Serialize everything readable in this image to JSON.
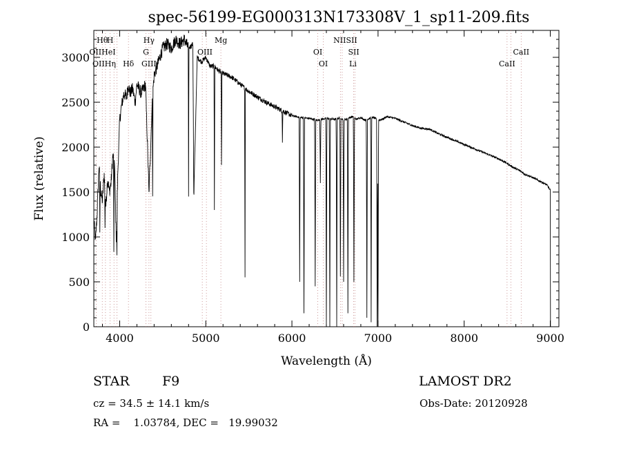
{
  "chart_data": {
    "type": "line",
    "title": "spec-56199-EG000313N173308V_1_sp11-209.fits",
    "xlabel": "Wavelength (Å)",
    "ylabel": "Flux (relative)",
    "xlim": [
      3700,
      9100
    ],
    "ylim": [
      0,
      3300
    ],
    "xticks": [
      4000,
      5000,
      6000,
      7000,
      8000,
      9000
    ],
    "yticks": [
      0,
      500,
      1000,
      1500,
      2000,
      2500,
      3000
    ],
    "grid": false,
    "series": [
      {
        "x": [
          3700,
          3720,
          3740,
          3760,
          3780,
          3800,
          3820,
          3840,
          3860,
          3880,
          3900,
          3920,
          3940,
          3960,
          3980,
          4000,
          4020,
          4050,
          4080,
          4100,
          4120,
          4150,
          4180,
          4200,
          4250,
          4300,
          4340,
          4380,
          4400,
          4450,
          4500,
          4550,
          4600,
          4650,
          4700,
          4750,
          4800,
          4850,
          4861,
          4900,
          4950,
          5000,
          5050,
          5100,
          5150,
          5200,
          5250,
          5300,
          5400,
          5500,
          5600,
          5700,
          5800,
          5900,
          6000,
          6100,
          6200,
          6300,
          6400,
          6500,
          6563,
          6600,
          6650,
          6700,
          6750,
          6800,
          6850,
          6900,
          6950,
          7000,
          7050,
          7100,
          7200,
          7300,
          7400,
          7500,
          7600,
          7700,
          7800,
          7900,
          8000,
          8100,
          8200,
          8300,
          8400,
          8498,
          8542,
          8600,
          8662,
          8700,
          8800,
          8900,
          8960,
          9000
        ],
        "y": [
          1200,
          950,
          1300,
          1800,
          1500,
          1400,
          1700,
          1350,
          1650,
          1500,
          1600,
          1900,
          1850,
          1000,
          1750,
          2300,
          2450,
          2600,
          2550,
          2700,
          2600,
          2650,
          2500,
          2700,
          2600,
          2700,
          1500,
          2550,
          2800,
          2950,
          3100,
          3150,
          3100,
          3200,
          3150,
          3200,
          3100,
          3150,
          1450,
          3000,
          2950,
          3000,
          2900,
          2900,
          2850,
          2820,
          2800,
          2780,
          2700,
          2620,
          2560,
          2500,
          2450,
          2400,
          2350,
          2330,
          2320,
          2300,
          2320,
          2310,
          2330,
          2300,
          2320,
          2340,
          2310,
          2330,
          2300,
          2320,
          2330,
          2300,
          2310,
          2340,
          2320,
          2280,
          2240,
          2210,
          2200,
          2150,
          2110,
          2070,
          2030,
          1990,
          1950,
          1910,
          1870,
          1820,
          1790,
          1760,
          1730,
          1700,
          1660,
          1610,
          1580,
          1520
        ],
        "description": "Continuum points; sharp absorption dips at lines listed in annotations"
      }
    ],
    "absorption_features": [
      {
        "x": 3770,
        "y": 1050
      },
      {
        "x": 3830,
        "y": 1100
      },
      {
        "x": 3933,
        "y": 680
      },
      {
        "x": 3968,
        "y": 720
      },
      {
        "x": 4340,
        "y": 1500
      },
      {
        "x": 4383,
        "y": 1300
      },
      {
        "x": 4800,
        "y": 1450
      },
      {
        "x": 4861,
        "y": 1450
      },
      {
        "x": 5100,
        "y": 1300
      },
      {
        "x": 5183,
        "y": 1650
      },
      {
        "x": 5455,
        "y": 550
      },
      {
        "x": 5890,
        "y": 2050
      },
      {
        "x": 6090,
        "y": 500
      },
      {
        "x": 6140,
        "y": 150
      },
      {
        "x": 6270,
        "y": 450
      },
      {
        "x": 6330,
        "y": 1600
      },
      {
        "x": 6400,
        "y": 30
      },
      {
        "x": 6440,
        "y": 0
      },
      {
        "x": 6520,
        "y": 0
      },
      {
        "x": 6563,
        "y": 400
      },
      {
        "x": 6600,
        "y": 500
      },
      {
        "x": 6650,
        "y": 150
      },
      {
        "x": 6720,
        "y": 500
      },
      {
        "x": 6870,
        "y": 100
      },
      {
        "x": 6920,
        "y": 50
      },
      {
        "x": 6990,
        "y": 0
      },
      {
        "x": 7000,
        "y": 0
      }
    ],
    "line_annotations": [
      {
        "label": "Hθ",
        "x": 3798,
        "row": 0
      },
      {
        "label": "H",
        "x": 3889,
        "row": 0
      },
      {
        "label": "Hγ",
        "x": 4340,
        "row": 0
      },
      {
        "label": "Mg",
        "x": 5175,
        "row": 0
      },
      {
        "label": "NIISII",
        "x": 6620,
        "row": 0
      },
      {
        "label": "OIIHeI",
        "x": 3800,
        "row": 1
      },
      {
        "label": "G",
        "x": 4305,
        "row": 1
      },
      {
        "label": "OIII",
        "x": 4990,
        "row": 1
      },
      {
        "label": "OI",
        "x": 6300,
        "row": 1
      },
      {
        "label": "SII",
        "x": 6717,
        "row": 1
      },
      {
        "label": "CaII",
        "x": 8662,
        "row": 1
      },
      {
        "label": "OIIHη",
        "x": 3820,
        "row": 2
      },
      {
        "label": "Hδ",
        "x": 4102,
        "row": 2
      },
      {
        "label": "GIII",
        "x": 4340,
        "row": 2
      },
      {
        "label": "OI",
        "x": 6364,
        "row": 2
      },
      {
        "label": "Li",
        "x": 6708,
        "row": 2
      },
      {
        "label": "CaII",
        "x": 8498,
        "row": 2
      }
    ],
    "line_markers": [
      3727,
      3798,
      3835,
      3889,
      3934,
      3968,
      4102,
      4305,
      4340,
      4363,
      4959,
      5007,
      5175,
      6300,
      6364,
      6563,
      6584,
      6717,
      6731,
      8498,
      8542,
      8662
    ]
  },
  "info": {
    "class_label": "STAR",
    "subclass": "F9",
    "survey": "LAMOST DR2",
    "cz": "cz = 34.5 ± 14.1 km/s",
    "obs_date": "Obs-Date: 20120928",
    "radec": "RA =    1.03784, DEC =   19.99032"
  }
}
